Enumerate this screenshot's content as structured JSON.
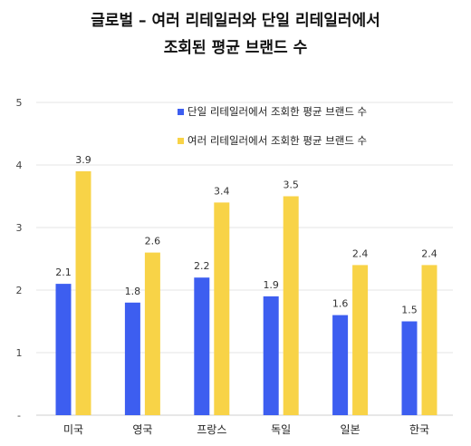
{
  "chart_data": {
    "type": "bar",
    "title": "글로벌 – 여러 리테일러와 단일 리테일러에서",
    "subtitle": "조회된 평균 브랜드 수",
    "xlabel": "",
    "ylabel": "",
    "ylim": [
      0,
      5
    ],
    "yticks": [
      "-",
      "1",
      "2",
      "3",
      "4",
      "5"
    ],
    "grid": true,
    "legend_position": "top-right",
    "categories": [
      "미국",
      "영국",
      "프랑스",
      "독일",
      "일본",
      "한국"
    ],
    "series": [
      {
        "name": "단일 리테일러에서 조회한 평균 브랜드 수",
        "color": "#3d5ef0",
        "values": [
          2.1,
          1.8,
          2.2,
          1.9,
          1.6,
          1.5
        ]
      },
      {
        "name": "여러 리테일러에서 조회한 평균 브랜드 수",
        "color": "#f8d347",
        "values": [
          3.9,
          2.6,
          3.4,
          3.5,
          2.4,
          2.4
        ]
      }
    ]
  }
}
